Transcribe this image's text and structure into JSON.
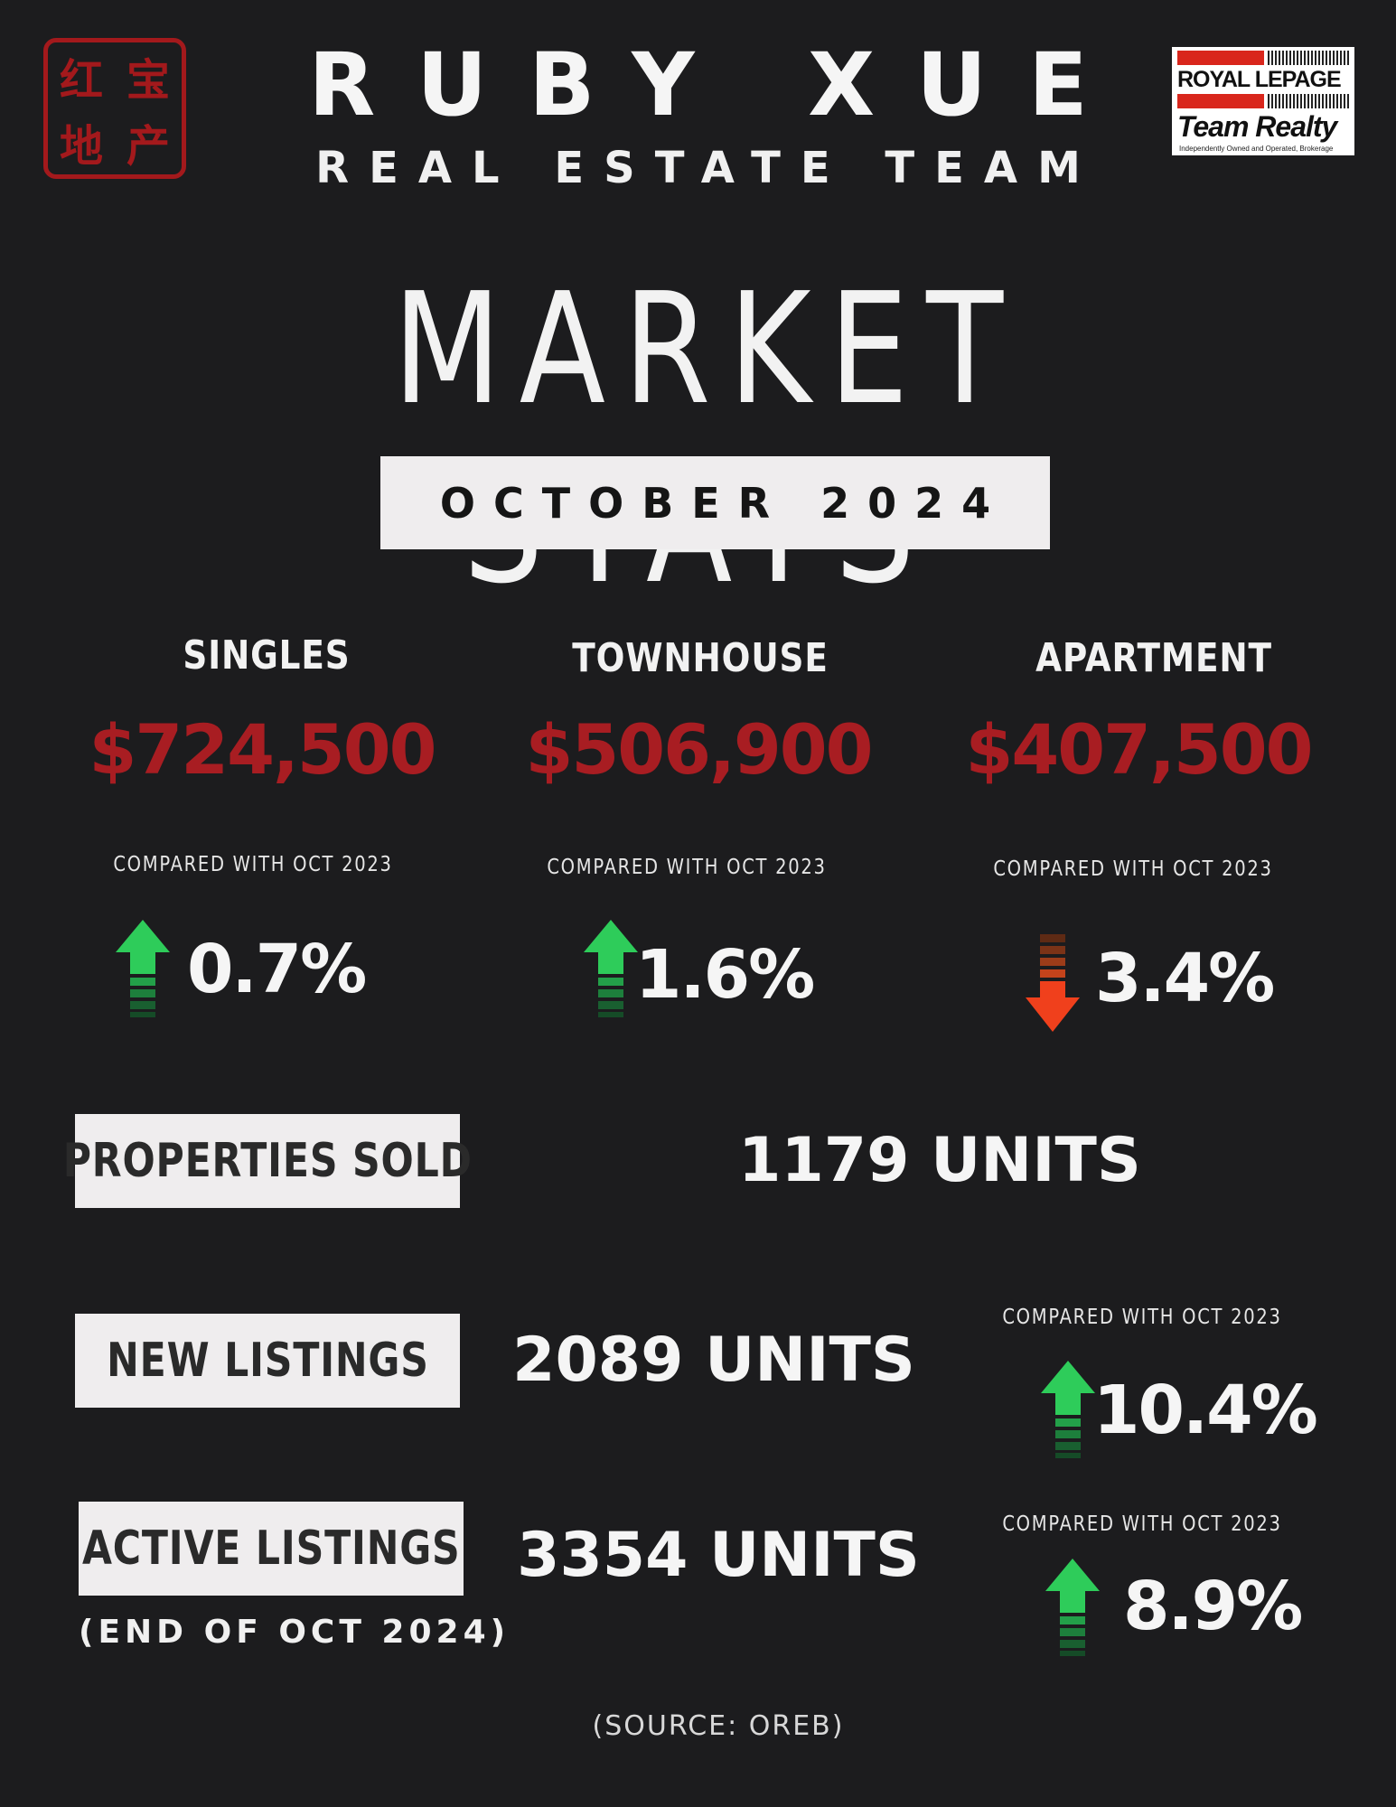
{
  "header": {
    "seal_chars": [
      "红",
      "宝",
      "地",
      "产"
    ],
    "brand_name": "RUBY XUE",
    "brand_sub": "REAL ESTATE TEAM",
    "partner_logo": {
      "line1": "ROYAL LEPAGE",
      "line2": "Team Realty",
      "line3": "Independently Owned and Operated, Brokerage"
    }
  },
  "title": "MARKET STATS",
  "period": "OCTOBER 2024",
  "prices": [
    {
      "label": "SINGLES",
      "price": "$724,500",
      "compare": "COMPARED WITH OCT 2023",
      "change": "0.7%",
      "direction": "up"
    },
    {
      "label": "TOWNHOUSE",
      "price": "$506,900",
      "compare": "COMPARED WITH OCT 2023",
      "change": "1.6%",
      "direction": "up"
    },
    {
      "label": "APARTMENT",
      "price": "$407,500",
      "compare": "COMPARED WITH OCT 2023",
      "change": "3.4%",
      "direction": "down"
    }
  ],
  "stats": {
    "sold": {
      "label": "PROPERTIES SOLD",
      "value": "1179 UNITS"
    },
    "new_listings": {
      "label": "NEW LISTINGS",
      "value": "2089 UNITS",
      "compare": "COMPARED WITH OCT 2023",
      "change": "10.4%",
      "direction": "up"
    },
    "active_listings": {
      "label": "ACTIVE LISTINGS",
      "note": "(END OF OCT 2024)",
      "value": "3354 UNITS",
      "compare": "COMPARED WITH OCT 2023",
      "change": "8.9%",
      "direction": "up"
    }
  },
  "source": "(SOURCE: OREB)",
  "colors": {
    "background": "#1c1c1e",
    "price_red": "#a81d22",
    "up_green": "#2ecc5a",
    "down_orange": "#f0401c"
  }
}
